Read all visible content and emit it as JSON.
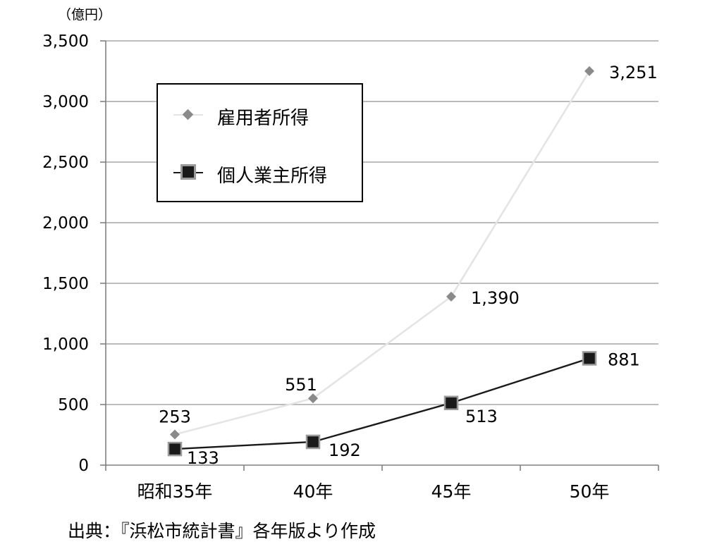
{
  "unit_label": "（億円）",
  "source_note": "出典：『浜松市統計書』各年版より作成",
  "chart_data": {
    "type": "line",
    "categories": [
      "昭和35年",
      "40年",
      "45年",
      "50年"
    ],
    "series": [
      {
        "name": "雇用者所得",
        "values": [
          253,
          551,
          1390,
          3251
        ],
        "data_labels": [
          "253",
          "551",
          "1,390",
          "3,251"
        ],
        "color": "#e4e4e4",
        "marker": "diamond",
        "marker_color": "#8a8a8a"
      },
      {
        "name": "個人業主所得",
        "values": [
          133,
          192,
          513,
          881
        ],
        "data_labels": [
          "133",
          "192",
          "513",
          "881"
        ],
        "color": "#1a1a1a",
        "marker": "square",
        "marker_color": "#1a1a1a",
        "marker_border": "#9a9a9a"
      }
    ],
    "ylim": [
      0,
      3500
    ],
    "yticks": [
      0,
      500,
      1000,
      1500,
      2000,
      2500,
      3000,
      3500
    ],
    "ytick_labels": [
      "0",
      "500",
      "1,000",
      "1,500",
      "2,000",
      "2,500",
      "3,000",
      "3,500"
    ],
    "grid": true,
    "grid_color": "#a6a6a6",
    "legend_position": "upper-left"
  }
}
